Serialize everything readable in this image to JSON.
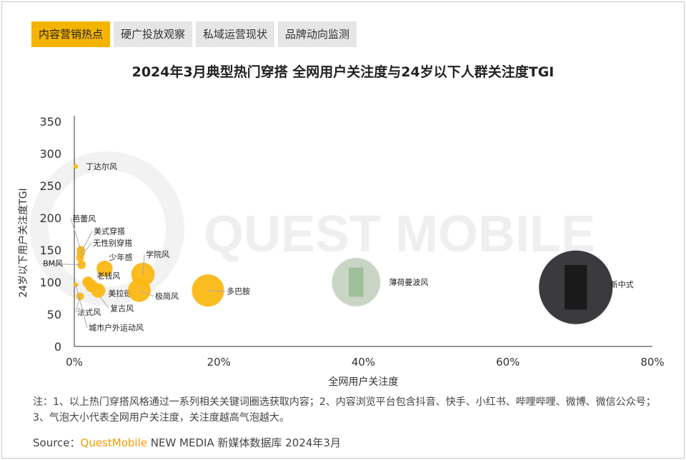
{
  "tabs": [
    {
      "label": "内容营销热点",
      "active": true
    },
    {
      "label": "硬广投放观察"
    },
    {
      "label": "私域运营现状"
    },
    {
      "label": "品牌动向监测"
    }
  ],
  "watermark": "QUEST MOBILE",
  "chart_data": {
    "type": "scatter",
    "subtype": "bubble",
    "title": "2024年3月典型热门穿搭 全网用户关注度与24岁以下人群关注度TGI",
    "xlabel": "全网用户关注度",
    "ylabel": "24岁以下用户关注度TGI",
    "xlim": [
      0,
      80
    ],
    "ylim": [
      0,
      350
    ],
    "xticks": [
      "0%",
      "20%",
      "40%",
      "60%",
      "80%"
    ],
    "yticks": [
      "0",
      "50",
      "100",
      "150",
      "200",
      "250",
      "300",
      "350"
    ],
    "grid": false,
    "color": "#fbb814",
    "points": [
      {
        "label": "丁达尔风",
        "x": 0.2,
        "y": 280
      },
      {
        "label": "芭蕾风",
        "x": 0.9,
        "y": 150
      },
      {
        "label": "美式穿搭",
        "x": 0.9,
        "y": 145
      },
      {
        "label": "无性别穿搭",
        "x": 0.8,
        "y": 138
      },
      {
        "label": "BM风",
        "x": 1.0,
        "y": 127
      },
      {
        "label": "少年感",
        "x": 4.2,
        "y": 121
      },
      {
        "label": "老钱风",
        "x": 1.9,
        "y": 100
      },
      {
        "label": "复古风",
        "x": 2.4,
        "y": 94
      },
      {
        "label": "美拉德",
        "x": 3.3,
        "y": 87
      },
      {
        "label": "法式风",
        "x": 0.8,
        "y": 78
      },
      {
        "label": "城市户外运动风",
        "x": 0.2,
        "y": 96
      },
      {
        "label": "学院风",
        "x": 9.5,
        "y": 112
      },
      {
        "label": "极简风",
        "x": 9.0,
        "y": 87
      },
      {
        "label": "多巴胺",
        "x": 18.5,
        "y": 87
      },
      {
        "label": "薄荷曼波风",
        "x": 39,
        "y": 100,
        "image": true
      },
      {
        "label": "新中式",
        "x": 69.4,
        "y": 92,
        "image": true
      }
    ]
  },
  "note": "注：1、以上热门穿搭风格通过一系列相关关键词圈选获取内容；2、内容浏览平台包含抖音、快手、小红书、哔哩哔哩、微博、微信公众号；3、气泡大小代表全网用户关注度，关注度越高气泡越大。",
  "source": {
    "prefix": "Source：",
    "brand": "QuestMobile",
    "rest": " NEW MEDIA 新媒体数据库 2024年3月"
  }
}
